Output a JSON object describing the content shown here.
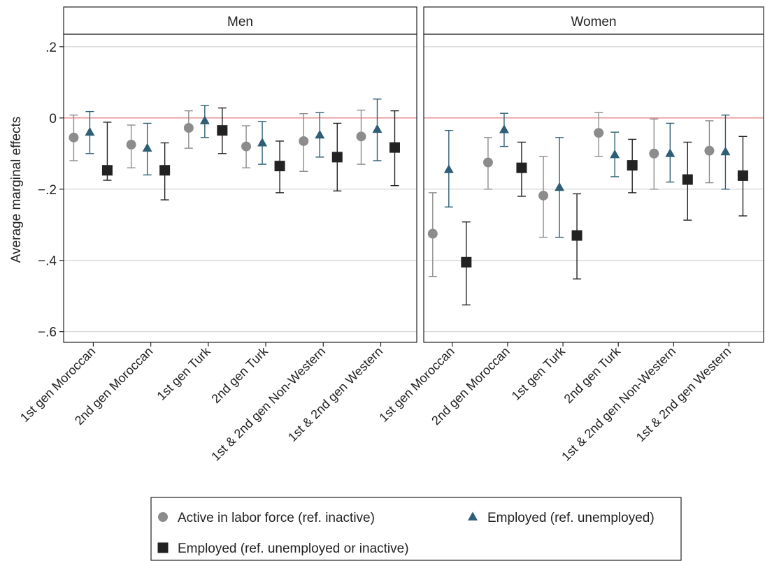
{
  "chart_data": {
    "type": "scatter",
    "ylabel": "Average marginal effects",
    "ylim": [
      -0.63,
      0.235
    ],
    "yticks": [
      0.2,
      0,
      -0.2,
      -0.4,
      -0.6
    ],
    "ytick_labels": [
      ".2",
      "0",
      "−.2",
      "−.4",
      "−.6"
    ],
    "categories": [
      "1st gen Moroccan",
      "2nd gen Moroccan",
      "1st gen Turk",
      "2nd gen Turk",
      "1st & 2nd gen Non-Western",
      "1st & 2nd gen Western"
    ],
    "reference_line": 0,
    "grid": true,
    "legend_position": "bottom",
    "series_styles": [
      {
        "key": "active",
        "name": "Active in labor force (ref. inactive)",
        "marker": "circle",
        "color": "#8c8c8c"
      },
      {
        "key": "emp_unemp",
        "name": "Employed (ref. unemployed)",
        "marker": "triangle",
        "color": "#2e5f76"
      },
      {
        "key": "emp_all",
        "name": "Employed (ref. unemployed or inactive)",
        "marker": "square",
        "color": "#222222"
      }
    ],
    "panels": [
      {
        "title": "Men",
        "series": [
          {
            "key": "active",
            "values": [
              -0.055,
              -0.075,
              -0.028,
              -0.08,
              -0.065,
              -0.052
            ],
            "lower": [
              -0.12,
              -0.14,
              -0.085,
              -0.14,
              -0.15,
              -0.13
            ],
            "upper": [
              0.008,
              -0.02,
              0.02,
              -0.022,
              0.012,
              0.022
            ]
          },
          {
            "key": "emp_unemp",
            "values": [
              -0.04,
              -0.085,
              -0.008,
              -0.07,
              -0.048,
              -0.032
            ],
            "lower": [
              -0.1,
              -0.16,
              -0.055,
              -0.13,
              -0.11,
              -0.12
            ],
            "upper": [
              0.018,
              -0.015,
              0.035,
              -0.01,
              0.015,
              0.053
            ]
          },
          {
            "key": "emp_all",
            "values": [
              -0.147,
              -0.147,
              -0.035,
              -0.135,
              -0.11,
              -0.083
            ],
            "lower": [
              -0.175,
              -0.23,
              -0.1,
              -0.21,
              -0.205,
              -0.19
            ],
            "upper": [
              -0.012,
              -0.07,
              0.028,
              -0.065,
              -0.015,
              0.02
            ]
          }
        ]
      },
      {
        "title": "Women",
        "series": [
          {
            "key": "active",
            "values": [
              -0.325,
              -0.125,
              -0.218,
              -0.042,
              -0.1,
              -0.092
            ],
            "lower": [
              -0.445,
              -0.2,
              -0.335,
              -0.108,
              -0.2,
              -0.182
            ],
            "upper": [
              -0.21,
              -0.055,
              -0.108,
              0.015,
              -0.003,
              -0.008
            ]
          },
          {
            "key": "emp_unemp",
            "values": [
              -0.145,
              -0.033,
              -0.195,
              -0.103,
              -0.1,
              -0.095
            ],
            "lower": [
              -0.25,
              -0.08,
              -0.335,
              -0.165,
              -0.18,
              -0.2
            ],
            "upper": [
              -0.035,
              0.013,
              -0.055,
              -0.04,
              -0.015,
              0.008
            ]
          },
          {
            "key": "emp_all",
            "values": [
              -0.405,
              -0.14,
              -0.33,
              -0.133,
              -0.173,
              -0.162
            ],
            "lower": [
              -0.525,
              -0.22,
              -0.452,
              -0.21,
              -0.287,
              -0.275
            ],
            "upper": [
              -0.292,
              -0.068,
              -0.213,
              -0.06,
              -0.068,
              -0.052
            ]
          }
        ]
      }
    ]
  }
}
